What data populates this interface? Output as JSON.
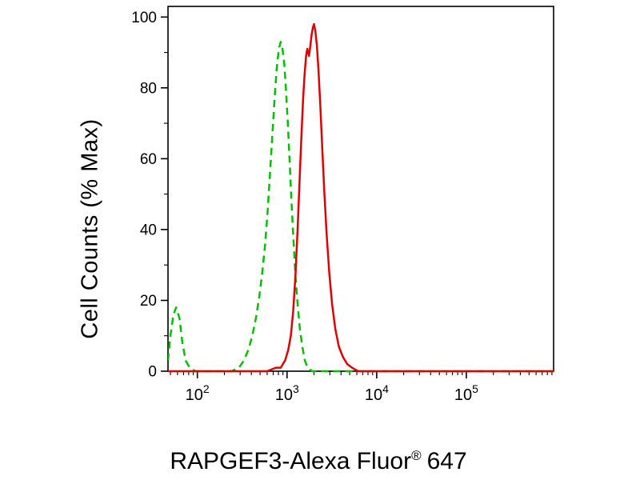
{
  "chart_data": {
    "type": "line",
    "title": "",
    "xlabel": "RAPGEF3-Alexa Fluor® 647",
    "xlabel_parts": {
      "main": "RAPGEF3-Alexa Fluor",
      "registered": "®",
      "suffix": "647"
    },
    "ylabel": "Cell Counts (% Max)",
    "x_scale": "log",
    "xlim": [
      47,
      940000
    ],
    "ylim": [
      0,
      100
    ],
    "x_tick_exponents": [
      2,
      3,
      4,
      5
    ],
    "y_ticks": [
      0,
      20,
      40,
      60,
      80,
      100
    ],
    "y_minor_step": 10,
    "grid": false,
    "legend": "none",
    "frame": true,
    "series": [
      {
        "name": "isotype-control",
        "style": "dashed",
        "color": "#00c000",
        "points": [
          [
            47,
            3
          ],
          [
            50,
            10
          ],
          [
            54,
            16
          ],
          [
            58,
            18
          ],
          [
            63,
            15
          ],
          [
            68,
            8
          ],
          [
            74,
            3
          ],
          [
            82,
            1
          ],
          [
            95,
            0
          ],
          [
            160,
            0
          ],
          [
            240,
            0
          ],
          [
            290,
            1
          ],
          [
            330,
            3
          ],
          [
            370,
            6
          ],
          [
            410,
            10
          ],
          [
            450,
            15
          ],
          [
            490,
            21
          ],
          [
            530,
            28
          ],
          [
            570,
            36
          ],
          [
            610,
            46
          ],
          [
            650,
            57
          ],
          [
            690,
            68
          ],
          [
            730,
            78
          ],
          [
            770,
            86
          ],
          [
            810,
            91
          ],
          [
            850,
            93
          ],
          [
            890,
            91
          ],
          [
            930,
            87
          ],
          [
            970,
            80
          ],
          [
            1020,
            70
          ],
          [
            1070,
            59
          ],
          [
            1120,
            48
          ],
          [
            1180,
            37
          ],
          [
            1240,
            27
          ],
          [
            1310,
            19
          ],
          [
            1390,
            12
          ],
          [
            1480,
            7
          ],
          [
            1580,
            3
          ],
          [
            1700,
            1
          ],
          [
            1900,
            0
          ],
          [
            940000,
            0
          ]
        ]
      },
      {
        "name": "rapgef3-stained",
        "style": "solid",
        "color": "#e00000",
        "points": [
          [
            47,
            0
          ],
          [
            600,
            0
          ],
          [
            750,
            1
          ],
          [
            850,
            1
          ],
          [
            950,
            3
          ],
          [
            1030,
            6
          ],
          [
            1100,
            10
          ],
          [
            1170,
            17
          ],
          [
            1240,
            27
          ],
          [
            1310,
            40
          ],
          [
            1380,
            54
          ],
          [
            1450,
            67
          ],
          [
            1510,
            77
          ],
          [
            1570,
            84
          ],
          [
            1630,
            89
          ],
          [
            1680,
            91
          ],
          [
            1720,
            90
          ],
          [
            1760,
            89
          ],
          [
            1820,
            92
          ],
          [
            1880,
            95
          ],
          [
            1940,
            97
          ],
          [
            2000,
            98
          ],
          [
            2070,
            96
          ],
          [
            2150,
            92
          ],
          [
            2240,
            85
          ],
          [
            2350,
            75
          ],
          [
            2470,
            63
          ],
          [
            2600,
            51
          ],
          [
            2760,
            39
          ],
          [
            2950,
            28
          ],
          [
            3180,
            19
          ],
          [
            3450,
            12
          ],
          [
            3780,
            7
          ],
          [
            4200,
            4
          ],
          [
            4700,
            2
          ],
          [
            5300,
            1
          ],
          [
            6200,
            0
          ],
          [
            940000,
            0
          ]
        ]
      }
    ]
  }
}
